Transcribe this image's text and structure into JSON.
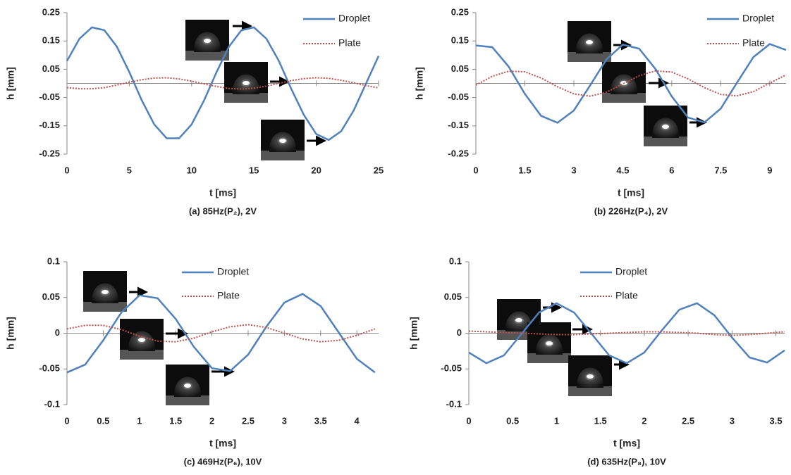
{
  "chart_data": [
    {
      "type": "line",
      "caption": "(a) 85Hz(P₂),  2V",
      "x_label": "t [ms]",
      "y_label": "h [mm]",
      "x": [
        0,
        1,
        2,
        3,
        4,
        5,
        6,
        7,
        8,
        9,
        10,
        11,
        12,
        13,
        14,
        15,
        16,
        17,
        18,
        19,
        20,
        21,
        22,
        23,
        24,
        25
      ],
      "series": [
        {
          "name": "Droplet",
          "color": "#4f81bd",
          "style": "solid",
          "values": [
            0.079,
            0.158,
            0.198,
            0.188,
            0.13,
            0.04,
            -0.06,
            -0.145,
            -0.194,
            -0.194,
            -0.145,
            -0.06,
            0.04,
            0.13,
            0.188,
            0.198,
            0.158,
            0.079,
            -0.02,
            -0.111,
            -0.179,
            -0.2,
            -0.169,
            -0.096,
            0.0,
            0.097
          ]
        },
        {
          "name": "Plate",
          "color": "#c0504d",
          "style": "dotted",
          "values": [
            -0.015,
            -0.019,
            -0.019,
            -0.015,
            -0.006,
            0.004,
            0.013,
            0.019,
            0.02,
            0.016,
            0.008,
            -0.002,
            -0.011,
            -0.018,
            -0.02,
            -0.017,
            -0.01,
            0.0,
            0.01,
            0.017,
            0.02,
            0.018,
            0.011,
            0.002,
            -0.008,
            -0.016
          ]
        }
      ],
      "xlim": [
        0,
        25
      ],
      "xticks": [
        0,
        5,
        10,
        15,
        20,
        25
      ],
      "ylim": [
        -0.25,
        0.25
      ],
      "yticks": [
        -0.25,
        -0.15,
        -0.05,
        0.05,
        0.15,
        0.25
      ]
    },
    {
      "type": "line",
      "caption": "(b) 226Hz(P₄),  2V",
      "x_label": "t [ms]",
      "y_label": "h [mm]",
      "x": [
        0,
        0.5,
        1,
        1.5,
        2,
        2.5,
        3,
        3.5,
        4,
        4.5,
        5,
        5.5,
        6,
        6.5,
        7,
        7.5,
        8,
        8.5,
        9,
        9.5
      ],
      "series": [
        {
          "name": "Droplet",
          "color": "#4f81bd",
          "style": "solid",
          "values": [
            0.134,
            0.128,
            0.06,
            -0.037,
            -0.115,
            -0.139,
            -0.096,
            -0.007,
            0.085,
            0.137,
            0.123,
            0.051,
            -0.046,
            -0.121,
            -0.138,
            -0.089,
            0.003,
            0.093,
            0.139,
            0.118
          ]
        },
        {
          "name": "Plate",
          "color": "#c0504d",
          "style": "dotted",
          "values": [
            -0.006,
            0.025,
            0.043,
            0.041,
            0.019,
            -0.012,
            -0.037,
            -0.045,
            -0.031,
            -0.002,
            0.027,
            0.044,
            0.04,
            0.016,
            -0.015,
            -0.039,
            -0.044,
            -0.029,
            0.001,
            0.03
          ]
        }
      ],
      "xlim": [
        0,
        9.5
      ],
      "xticks": [
        0,
        1.5,
        3,
        4.5,
        6,
        7.5,
        9
      ],
      "ylim": [
        -0.25,
        0.25
      ],
      "yticks": [
        -0.25,
        -0.15,
        -0.05,
        0.05,
        0.15,
        0.25
      ]
    },
    {
      "type": "line",
      "caption": "(c) 469Hz(P₆),  10V",
      "x_label": "t [ms]",
      "y_label": "h [mm]",
      "x": [
        0,
        0.25,
        0.5,
        0.75,
        1,
        1.25,
        1.5,
        1.75,
        2,
        2.25,
        2.5,
        2.75,
        3,
        3.25,
        3.5,
        3.75,
        4,
        4.25
      ],
      "series": [
        {
          "name": "Droplet",
          "color": "#4f81bd",
          "style": "solid",
          "values": [
            -0.055,
            -0.044,
            -0.01,
            0.029,
            0.053,
            0.049,
            0.02,
            -0.019,
            -0.049,
            -0.053,
            -0.03,
            0.009,
            0.043,
            0.055,
            0.038,
            0.001,
            -0.036,
            -0.055
          ]
        },
        {
          "name": "Plate",
          "color": "#c0504d",
          "style": "dotted",
          "values": [
            0.006,
            0.011,
            0.011,
            0.005,
            -0.004,
            -0.011,
            -0.012,
            -0.007,
            0.002,
            0.009,
            0.012,
            0.008,
            0.0,
            -0.008,
            -0.012,
            -0.01,
            -0.003,
            0.006
          ]
        }
      ],
      "xlim": [
        0,
        4.3
      ],
      "xticks": [
        0,
        0.5,
        1,
        1.5,
        2,
        2.5,
        3,
        3.5,
        4
      ],
      "ylim": [
        -0.1,
        0.1
      ],
      "yticks": [
        -0.1,
        -0.05,
        0,
        0.05,
        0.1
      ]
    },
    {
      "type": "line",
      "caption": "(d) 635Hz(P₈),  10V",
      "x_label": "t [ms]",
      "y_label": "h [mm]",
      "x": [
        0,
        0.2,
        0.4,
        0.6,
        0.8,
        1,
        1.2,
        1.4,
        1.6,
        1.8,
        2,
        2.2,
        2.4,
        2.6,
        2.8,
        3,
        3.2,
        3.4,
        3.6
      ],
      "series": [
        {
          "name": "Droplet",
          "color": "#4f81bd",
          "style": "solid",
          "values": [
            -0.027,
            -0.042,
            -0.031,
            -0.001,
            0.029,
            0.042,
            0.029,
            -0.001,
            -0.031,
            -0.042,
            -0.027,
            0.004,
            0.033,
            0.042,
            0.025,
            -0.006,
            -0.034,
            -0.041,
            -0.024
          ]
        },
        {
          "name": "Plate",
          "color": "#c0504d",
          "style": "dotted",
          "values": [
            0.003,
            0.002,
            0.001,
            0.0,
            -0.001,
            -0.002,
            -0.002,
            -0.001,
            0.0,
            0.001,
            0.002,
            0.002,
            0.001,
            0.0,
            -0.002,
            -0.003,
            -0.002,
            0.0,
            0.002
          ]
        }
      ],
      "xlim": [
        0,
        3.6
      ],
      "xticks": [
        0,
        0.5,
        1,
        1.5,
        2,
        2.5,
        3,
        3.5
      ],
      "ylim": [
        -0.1,
        0.1
      ],
      "yticks": [
        -0.1,
        -0.05,
        0,
        0.05,
        0.1
      ]
    }
  ]
}
